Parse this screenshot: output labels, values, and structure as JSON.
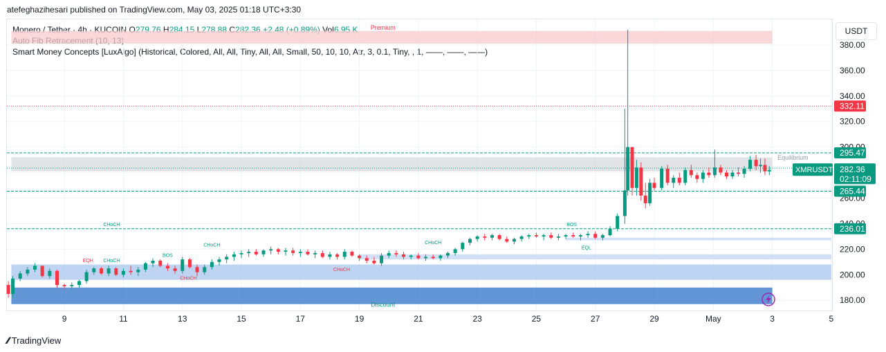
{
  "header": {
    "published_by": "atefeghazihesari published on TradingView.com, May 03, 2025 01:18 UTC+3:30"
  },
  "legend": {
    "symbol": "Monero / Tether · 4h · KUCOIN",
    "o_label": "O",
    "o_value": "279.76",
    "h_label": "H",
    "h_value": "284.15",
    "l_label": "L",
    "l_value": "278.88",
    "c_label": "C",
    "c_value": "282.36",
    "change": "+2.48 (+0.89%)",
    "vol_label": "Vol",
    "vol_value": "6.95 K",
    "indicator1": "Auto Fib Retracement (10, 13)",
    "indicator2": "Smart Money Concepts [LuxAlgo] (Historical, Colored, All, All, Tiny, All, All, Small, 50, 10, 10, Atr, 3, 0.1, Tiny, , 1, ——, ——, ——)"
  },
  "currency": "USDT",
  "footer": {
    "brand": "TradingView"
  },
  "colors": {
    "up": "#089981",
    "down": "#f23645",
    "accent": "#2962ff",
    "premium": "#f23645",
    "discount": "#089981"
  },
  "chart_data": {
    "type": "candlestick",
    "symbol": "XMRUSDT",
    "ylim": [
      172,
      400
    ],
    "y_ticks": [
      180,
      200,
      220,
      240,
      260,
      280,
      300,
      320,
      340,
      360,
      380
    ],
    "y_tick_labels": [
      "180.00",
      "200.00",
      "220.00",
      "240.00",
      "260.00",
      "280.00",
      "300.00",
      "320.00",
      "340.00",
      "360.00",
      "380.00"
    ],
    "x_ticks": [
      {
        "label": "9",
        "day": 2
      },
      {
        "label": "11",
        "day": 4
      },
      {
        "label": "13",
        "day": 6
      },
      {
        "label": "15",
        "day": 8
      },
      {
        "label": "17",
        "day": 10
      },
      {
        "label": "19",
        "day": 12
      },
      {
        "label": "21",
        "day": 14
      },
      {
        "label": "23",
        "day": 16
      },
      {
        "label": "25",
        "day": 18
      },
      {
        "label": "27",
        "day": 20
      },
      {
        "label": "29",
        "day": 22
      },
      {
        "label": "May",
        "day": 24
      },
      {
        "label": "3",
        "day": 26
      },
      {
        "label": "5",
        "day": 28
      }
    ],
    "xlim": [
      0.05,
      28.05
    ],
    "price_labels": [
      {
        "value": 332.11,
        "text": "332.11",
        "color": "#f23645"
      },
      {
        "value": 295.47,
        "text": "295.47",
        "color": "#089981"
      },
      {
        "value": 265.44,
        "text": "265.44",
        "color": "#089981"
      },
      {
        "value": 236.01,
        "text": "236.01",
        "color": "#089981"
      }
    ],
    "current": {
      "symbol": "XMRUSDT",
      "value": 282.36,
      "text": "282.36",
      "countdown": "02:11:09"
    },
    "levels": [
      {
        "value": 332.11,
        "color": "#f23645",
        "style": "dotted"
      },
      {
        "value": 295.47,
        "color": "#089981",
        "style": "dashed"
      },
      {
        "value": 283.5,
        "color": "#089981",
        "style": "dotted"
      },
      {
        "value": 265.44,
        "color": "#089981",
        "style": "dashed"
      },
      {
        "value": 236.01,
        "color": "#089981",
        "style": "dashed"
      }
    ],
    "zones": [
      {
        "name": "premium",
        "y0": 381,
        "y1": 391,
        "x0": 0.2,
        "x1": 26.0,
        "color": "#f8c9cc"
      },
      {
        "name": "equilibrium",
        "y0": 281,
        "y1": 292,
        "x0": 0.2,
        "x1": 26.0,
        "color": "#d7d9de"
      },
      {
        "name": "discount",
        "y0": 177,
        "y1": 190,
        "x0": 0.2,
        "x1": 26.0,
        "color": "#2f73c9"
      },
      {
        "name": "ob1",
        "y0": 196,
        "y1": 208,
        "x0": 0.2,
        "x1": 28.0,
        "color": "#aac4ee"
      },
      {
        "name": "ob2",
        "y0": 212,
        "y1": 216,
        "x0": 12.0,
        "x1": 28.0,
        "color": "#c3d5f3"
      },
      {
        "name": "ob3",
        "y0": 227,
        "y1": 229,
        "x0": 19.0,
        "x1": 28.0,
        "color": "#c3d5f3"
      }
    ],
    "annotations": [
      {
        "text": "Premium",
        "day": 12.8,
        "value": 392,
        "color": "#f23645"
      },
      {
        "text": "Equilibrium",
        "day": 26.7,
        "value": 290,
        "color": "#9598a1"
      },
      {
        "text": "Discount",
        "day": 12.8,
        "value": 175,
        "color": "#089981"
      },
      {
        "text": "CHoCH",
        "day": 3.6,
        "value": 238,
        "color": "#089981"
      },
      {
        "text": "EQH",
        "day": 2.8,
        "value": 210,
        "color": "#f23645"
      },
      {
        "text": "CHoCH",
        "day": 3.6,
        "value": 210,
        "color": "#089981"
      },
      {
        "text": "BOS",
        "day": 5.5,
        "value": 214,
        "color": "#089981"
      },
      {
        "text": "CHoCH",
        "day": 6.2,
        "value": 196,
        "color": "#f23645"
      },
      {
        "text": "CHoCH",
        "day": 7.0,
        "value": 222,
        "color": "#089981"
      },
      {
        "text": "CHoCH",
        "day": 11.4,
        "value": 203,
        "color": "#f23645"
      },
      {
        "text": "CHoCH",
        "day": 14.5,
        "value": 224,
        "color": "#089981"
      },
      {
        "text": "BOS",
        "day": 19.2,
        "value": 238,
        "color": "#089981"
      },
      {
        "text": "EQL",
        "day": 19.7,
        "value": 220,
        "color": "#089981"
      }
    ],
    "candles": [
      [
        0.1,
        192,
        195,
        182,
        185
      ],
      [
        0.25,
        185,
        199,
        183,
        197
      ],
      [
        0.5,
        197,
        203,
        195,
        201
      ],
      [
        0.75,
        201,
        206,
        199,
        204
      ],
      [
        1.0,
        204,
        209,
        202,
        207
      ],
      [
        1.25,
        207,
        207,
        198,
        199
      ],
      [
        1.5,
        199,
        205,
        197,
        203
      ],
      [
        1.75,
        203,
        204,
        190,
        192
      ],
      [
        2.0,
        192,
        193,
        189,
        191
      ],
      [
        2.25,
        191,
        194,
        189,
        192
      ],
      [
        2.5,
        192,
        196,
        190,
        195
      ],
      [
        2.75,
        195,
        204,
        193,
        202
      ],
      [
        3.0,
        202,
        206,
        200,
        205
      ],
      [
        3.25,
        205,
        206,
        200,
        201
      ],
      [
        3.5,
        201,
        207,
        199,
        205
      ],
      [
        3.75,
        205,
        206,
        199,
        200
      ],
      [
        4.0,
        200,
        205,
        198,
        203
      ],
      [
        4.25,
        203,
        207,
        200,
        202
      ],
      [
        4.5,
        202,
        206,
        199,
        204
      ],
      [
        4.75,
        204,
        210,
        202,
        209
      ],
      [
        5.0,
        209,
        213,
        206,
        211
      ],
      [
        5.25,
        211,
        212,
        206,
        207
      ],
      [
        5.5,
        207,
        209,
        203,
        205
      ],
      [
        5.75,
        205,
        207,
        201,
        203
      ],
      [
        6.0,
        203,
        214,
        201,
        212
      ],
      [
        6.25,
        212,
        213,
        205,
        206
      ],
      [
        6.5,
        206,
        208,
        199,
        202
      ],
      [
        6.75,
        202,
        208,
        200,
        206
      ],
      [
        7.0,
        206,
        212,
        204,
        210
      ],
      [
        7.25,
        210,
        214,
        207,
        212
      ],
      [
        7.5,
        212,
        216,
        209,
        214
      ],
      [
        7.75,
        214,
        218,
        211,
        216
      ],
      [
        8.0,
        216,
        219,
        213,
        217
      ],
      [
        8.25,
        217,
        220,
        214,
        218
      ],
      [
        8.5,
        218,
        220,
        215,
        216
      ],
      [
        8.75,
        216,
        220,
        214,
        219
      ],
      [
        9.0,
        219,
        222,
        216,
        220
      ],
      [
        9.25,
        220,
        221,
        216,
        218
      ],
      [
        9.5,
        218,
        221,
        215,
        219
      ],
      [
        9.75,
        219,
        221,
        215,
        217
      ],
      [
        10.0,
        217,
        220,
        214,
        218
      ],
      [
        10.25,
        218,
        220,
        215,
        216
      ],
      [
        10.5,
        216,
        219,
        213,
        217
      ],
      [
        10.75,
        217,
        219,
        213,
        214
      ],
      [
        11.0,
        214,
        218,
        212,
        216
      ],
      [
        11.25,
        216,
        217,
        212,
        214
      ],
      [
        11.5,
        214,
        220,
        212,
        218
      ],
      [
        11.75,
        218,
        219,
        214,
        215
      ],
      [
        12.0,
        215,
        216,
        211,
        213
      ],
      [
        12.25,
        213,
        215,
        209,
        211
      ],
      [
        12.5,
        211,
        214,
        208,
        209
      ],
      [
        12.75,
        209,
        217,
        207,
        215
      ],
      [
        13.0,
        215,
        219,
        213,
        217
      ],
      [
        13.25,
        217,
        219,
        214,
        216
      ],
      [
        13.5,
        216,
        218,
        212,
        214
      ],
      [
        13.75,
        214,
        216,
        212,
        215
      ],
      [
        14.0,
        215,
        217,
        212,
        213
      ],
      [
        14.25,
        213,
        216,
        211,
        214
      ],
      [
        14.5,
        214,
        216,
        212,
        213
      ],
      [
        14.75,
        213,
        216,
        211,
        215
      ],
      [
        15.0,
        215,
        218,
        213,
        217
      ],
      [
        15.25,
        217,
        221,
        215,
        220
      ],
      [
        15.5,
        220,
        226,
        218,
        225
      ],
      [
        15.75,
        225,
        229,
        223,
        228
      ],
      [
        16.0,
        228,
        231,
        226,
        230
      ],
      [
        16.25,
        230,
        232,
        227,
        229
      ],
      [
        16.5,
        229,
        232,
        227,
        231
      ],
      [
        16.75,
        231,
        232,
        227,
        228
      ],
      [
        17.0,
        228,
        230,
        225,
        226
      ],
      [
        17.25,
        226,
        229,
        224,
        228
      ],
      [
        17.5,
        228,
        231,
        226,
        230
      ],
      [
        17.75,
        230,
        232,
        228,
        231
      ],
      [
        18.0,
        231,
        233,
        229,
        230
      ],
      [
        18.25,
        230,
        232,
        227,
        231
      ],
      [
        18.5,
        231,
        233,
        228,
        229
      ],
      [
        18.75,
        229,
        232,
        227,
        230
      ],
      [
        19.0,
        230,
        232,
        228,
        231
      ],
      [
        19.25,
        231,
        233,
        229,
        230
      ],
      [
        19.5,
        230,
        232,
        227,
        231
      ],
      [
        19.75,
        231,
        234,
        229,
        232
      ],
      [
        20.0,
        232,
        234,
        228,
        229
      ],
      [
        20.25,
        229,
        232,
        227,
        231
      ],
      [
        20.5,
        231,
        238,
        230,
        236
      ],
      [
        20.75,
        236,
        248,
        234,
        246
      ],
      [
        21.0,
        246,
        330,
        240,
        266
      ],
      [
        21.1,
        266,
        392,
        262,
        300
      ],
      [
        21.25,
        300,
        300,
        262,
        268
      ],
      [
        21.4,
        268,
        290,
        262,
        284
      ],
      [
        21.55,
        284,
        288,
        258,
        262
      ],
      [
        21.7,
        262,
        272,
        252,
        256
      ],
      [
        21.85,
        256,
        275,
        254,
        272
      ],
      [
        22.0,
        272,
        276,
        266,
        268
      ],
      [
        22.25,
        268,
        285,
        266,
        283
      ],
      [
        22.45,
        283,
        286,
        270,
        272
      ],
      [
        22.65,
        272,
        278,
        268,
        276
      ],
      [
        22.85,
        276,
        280,
        270,
        272
      ],
      [
        23.05,
        272,
        284,
        270,
        282
      ],
      [
        23.25,
        282,
        286,
        276,
        278
      ],
      [
        23.45,
        278,
        280,
        272,
        275
      ],
      [
        23.65,
        275,
        282,
        272,
        280
      ],
      [
        23.85,
        280,
        284,
        276,
        278
      ],
      [
        24.05,
        278,
        298,
        276,
        284
      ],
      [
        24.25,
        284,
        286,
        278,
        280
      ],
      [
        24.45,
        280,
        282,
        275,
        277
      ],
      [
        24.65,
        277,
        282,
        275,
        280
      ],
      [
        24.85,
        280,
        284,
        277,
        279
      ],
      [
        25.05,
        279,
        285,
        276,
        283
      ],
      [
        25.25,
        283,
        293,
        281,
        290
      ],
      [
        25.45,
        290,
        294,
        282,
        285
      ],
      [
        25.6,
        285,
        291,
        280,
        286
      ],
      [
        25.75,
        286,
        291,
        278,
        281
      ],
      [
        25.9,
        281,
        285,
        278,
        282
      ]
    ]
  }
}
